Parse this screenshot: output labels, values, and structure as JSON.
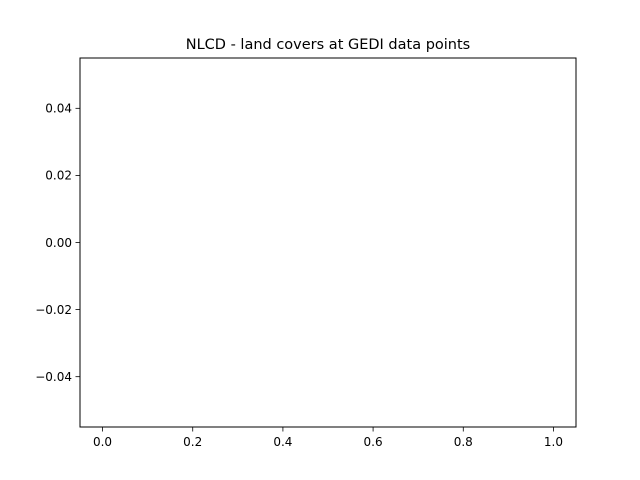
{
  "chart_data": {
    "type": "scatter",
    "title": "NLCD - land covers at GEDI data points",
    "xlabel": "",
    "ylabel": "",
    "series": [],
    "xlim": [
      -0.05,
      1.05
    ],
    "ylim": [
      -0.055,
      0.055
    ],
    "x_ticks": [
      0.0,
      0.2,
      0.4,
      0.6,
      0.8,
      1.0
    ],
    "x_tick_labels": [
      "0.0",
      "0.2",
      "0.4",
      "0.6",
      "0.8",
      "1.0"
    ],
    "y_ticks": [
      -0.04,
      -0.02,
      0.0,
      0.02,
      0.04
    ],
    "y_tick_labels": [
      "−0.04",
      "−0.02",
      "0.00",
      "0.02",
      "0.04"
    ],
    "grid": false,
    "legend": "none"
  }
}
